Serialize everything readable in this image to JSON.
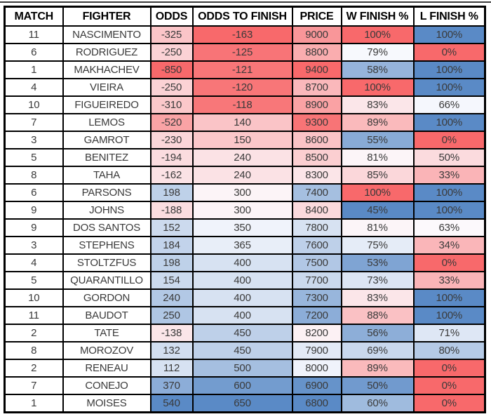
{
  "table": {
    "columns": [
      {
        "key": "match",
        "label": "MATCH"
      },
      {
        "key": "fighter",
        "label": "FIGHTER"
      },
      {
        "key": "odds",
        "label": "ODDS"
      },
      {
        "key": "odds_to_finish",
        "label": "ODDS TO FINISH"
      },
      {
        "key": "price",
        "label": "PRICE"
      },
      {
        "key": "w_finish",
        "label": "W FINISH %"
      },
      {
        "key": "l_finish",
        "label": "L FINISH %"
      }
    ],
    "rows": [
      {
        "match": "11",
        "fighter": "NASCIMENTO",
        "odds": "-325",
        "odds_to_finish": "-163",
        "price": "9000",
        "w_finish": "100%",
        "l_finish": "100%"
      },
      {
        "match": "6",
        "fighter": "RODRIGUEZ",
        "odds": "-250",
        "odds_to_finish": "-125",
        "price": "8800",
        "w_finish": "79%",
        "l_finish": "0%"
      },
      {
        "match": "1",
        "fighter": "MAKHACHEV",
        "odds": "-850",
        "odds_to_finish": "-121",
        "price": "9400",
        "w_finish": "58%",
        "l_finish": "100%"
      },
      {
        "match": "4",
        "fighter": "VIEIRA",
        "odds": "-250",
        "odds_to_finish": "-120",
        "price": "8700",
        "w_finish": "100%",
        "l_finish": "100%"
      },
      {
        "match": "10",
        "fighter": "FIGUEIREDO",
        "odds": "-310",
        "odds_to_finish": "-118",
        "price": "8900",
        "w_finish": "83%",
        "l_finish": "66%"
      },
      {
        "match": "7",
        "fighter": "LEMOS",
        "odds": "-520",
        "odds_to_finish": "140",
        "price": "9300",
        "w_finish": "89%",
        "l_finish": "100%"
      },
      {
        "match": "3",
        "fighter": "GAMROT",
        "odds": "-230",
        "odds_to_finish": "150",
        "price": "8600",
        "w_finish": "55%",
        "l_finish": "0%"
      },
      {
        "match": "5",
        "fighter": "BENITEZ",
        "odds": "-194",
        "odds_to_finish": "240",
        "price": "8500",
        "w_finish": "81%",
        "l_finish": "50%"
      },
      {
        "match": "8",
        "fighter": "TAHA",
        "odds": "-162",
        "odds_to_finish": "240",
        "price": "8300",
        "w_finish": "85%",
        "l_finish": "33%"
      },
      {
        "match": "6",
        "fighter": "PARSONS",
        "odds": "198",
        "odds_to_finish": "300",
        "price": "7400",
        "w_finish": "100%",
        "l_finish": "100%"
      },
      {
        "match": "9",
        "fighter": "JOHNS",
        "odds": "-188",
        "odds_to_finish": "300",
        "price": "8400",
        "w_finish": "45%",
        "l_finish": "100%"
      },
      {
        "match": "9",
        "fighter": "DOS SANTOS",
        "odds": "152",
        "odds_to_finish": "350",
        "price": "7800",
        "w_finish": "81%",
        "l_finish": "63%"
      },
      {
        "match": "3",
        "fighter": "STEPHENS",
        "odds": "184",
        "odds_to_finish": "365",
        "price": "7600",
        "w_finish": "75%",
        "l_finish": "34%"
      },
      {
        "match": "4",
        "fighter": "STOLTZFUS",
        "odds": "198",
        "odds_to_finish": "400",
        "price": "7500",
        "w_finish": "53%",
        "l_finish": "0%"
      },
      {
        "match": "5",
        "fighter": "QUARANTILLO",
        "odds": "154",
        "odds_to_finish": "400",
        "price": "7700",
        "w_finish": "73%",
        "l_finish": "33%"
      },
      {
        "match": "10",
        "fighter": "GORDON",
        "odds": "240",
        "odds_to_finish": "400",
        "price": "7300",
        "w_finish": "83%",
        "l_finish": "100%"
      },
      {
        "match": "11",
        "fighter": "BAUDOT",
        "odds": "250",
        "odds_to_finish": "400",
        "price": "7200",
        "w_finish": "88%",
        "l_finish": "100%"
      },
      {
        "match": "2",
        "fighter": "TATE",
        "odds": "-138",
        "odds_to_finish": "450",
        "price": "8200",
        "w_finish": "56%",
        "l_finish": "71%"
      },
      {
        "match": "8",
        "fighter": "MOROZOV",
        "odds": "132",
        "odds_to_finish": "450",
        "price": "7900",
        "w_finish": "69%",
        "l_finish": "80%"
      },
      {
        "match": "2",
        "fighter": "RENEAU",
        "odds": "112",
        "odds_to_finish": "500",
        "price": "8000",
        "w_finish": "89%",
        "l_finish": "0%"
      },
      {
        "match": "7",
        "fighter": "CONEJO",
        "odds": "370",
        "odds_to_finish": "600",
        "price": "6900",
        "w_finish": "50%",
        "l_finish": "0%"
      },
      {
        "match": "1",
        "fighter": "MOISES",
        "odds": "540",
        "odds_to_finish": "650",
        "price": "6800",
        "w_finish": "60%",
        "l_finish": "0%"
      }
    ],
    "color_scale": {
      "red": "#F8696B",
      "white": "#FCFCFF",
      "blue": "#5A8AC6",
      "midpoint": "median",
      "columns": {
        "odds": {
          "low": "red",
          "high": "blue"
        },
        "odds_to_finish": {
          "low": "red",
          "high": "blue"
        },
        "price": {
          "low": "blue",
          "high": "red"
        },
        "w_finish": {
          "low": "blue",
          "high": "red"
        },
        "l_finish": {
          "low": "red",
          "high": "blue"
        }
      }
    }
  }
}
